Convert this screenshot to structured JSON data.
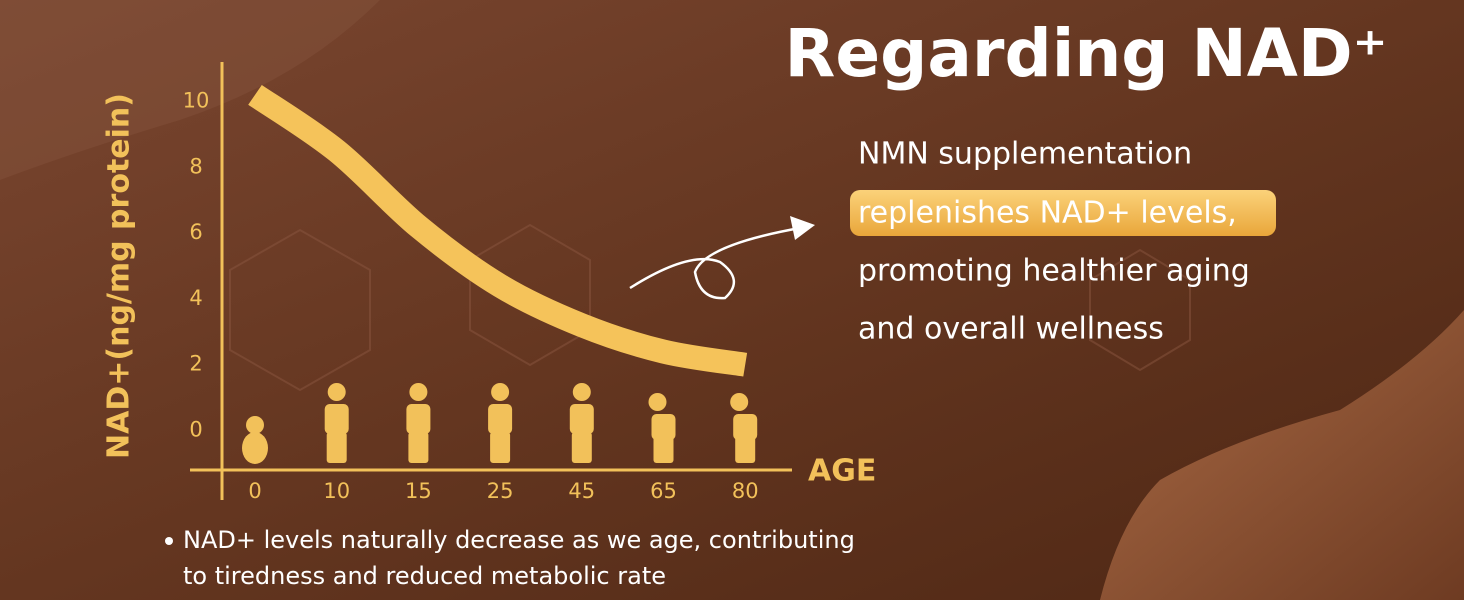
{
  "header": {
    "title": "Regarding NAD⁺"
  },
  "callout": {
    "lines": [
      "NMN supplementation",
      "replenishes NAD+ levels,",
      "promoting healthier aging",
      "and overall wellness"
    ]
  },
  "note": {
    "lines": [
      "NAD+ levels naturally decrease as we age, contributing",
      "to tiredness and reduced metabolic rate"
    ]
  },
  "chart_data": {
    "type": "line",
    "x_label": "AGE",
    "y_label": "NAD+(ng/mg protein)",
    "categories": [
      "0",
      "10",
      "15",
      "25",
      "45",
      "65",
      "80"
    ],
    "series": [
      {
        "name": "NAD+",
        "color": "#f5c35a",
        "values": [
          10.2,
          8.5,
          6.2,
          4.4,
          3.2,
          2.4,
          2.0
        ]
      }
    ],
    "ylim": [
      -1.2,
      11.2
    ],
    "yticks": [
      0,
      2,
      4,
      6,
      8,
      10
    ],
    "grid": false
  }
}
